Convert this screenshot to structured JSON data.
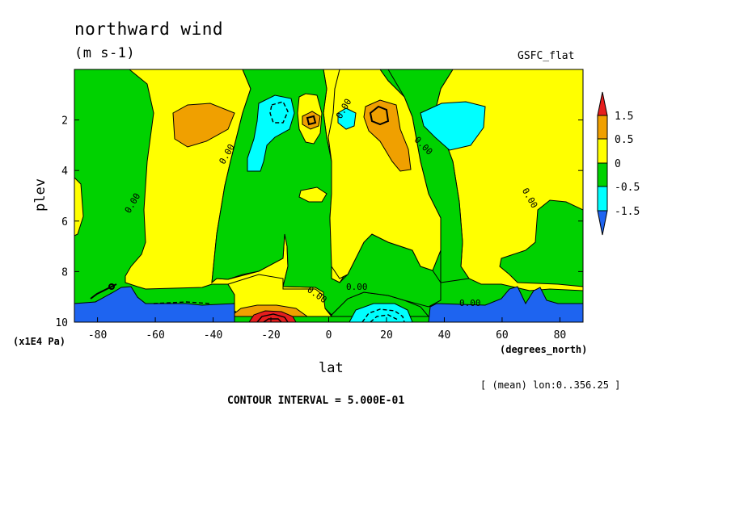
{
  "chart_data": {
    "type": "heatmap",
    "title": "northward wind",
    "units": "(m s-1)",
    "source_label": "GSFC_flat",
    "xlabel": "lat",
    "ylabel": "plev",
    "x_units": "(degrees_north)",
    "y_units": "(x1E4 Pa)",
    "xlim": [
      -88,
      88
    ],
    "ylim": [
      10,
      0
    ],
    "x_ticks": [
      -80,
      -60,
      -40,
      -20,
      0,
      20,
      40,
      60,
      80
    ],
    "y_ticks": [
      2,
      4,
      6,
      8,
      10
    ],
    "contour_levels": [
      -1.5,
      -0.5,
      0,
      0.5,
      1.5
    ],
    "colorbar_labels": [
      "1.5",
      "0.5",
      "0",
      "-0.5",
      "-1.5"
    ],
    "colors": {
      "below_-1.5": "#1e64f0",
      "-1.5_to_-0.5": "#00ffff",
      "-0.5_to_0": "#00d200",
      "0_to_0.5": "#ffff00",
      "0.5_to_1.5": "#f0a000",
      "above_1.5": "#e61e1e"
    },
    "contour_labels": [
      "0.00",
      "0.00",
      "0.00",
      "0.00",
      "0.00",
      "0.00",
      "0.00",
      "0.00"
    ],
    "lon_note": "[ (mean) lon:0..356.25 ]",
    "contour_interval": "CONTOUR INTERVAL = 5.000E-01"
  }
}
